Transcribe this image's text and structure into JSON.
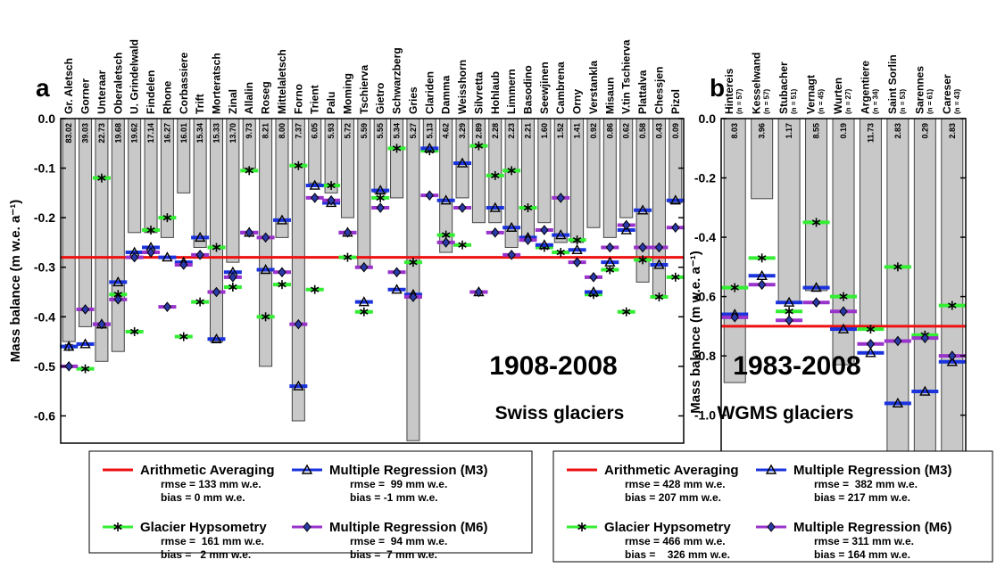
{
  "chart_data": [
    {
      "type": "bar",
      "panel_label": "a",
      "period": "1908-2008",
      "region": "Swiss glaciers",
      "y_label": "Mass balance (m w.e. a⁻¹)",
      "categories": [
        "Gr. Aletsch",
        "Gorner",
        "Unteraar",
        "Oberaletsch",
        "U. Grindelwald",
        "Findelen",
        "Rhone",
        "Corbassiere",
        "Trift",
        "Morteratsch",
        "Zinal",
        "Allalin",
        "Roseg",
        "Mittelaletsch",
        "Forno",
        "Trient",
        "Palu",
        "Moming",
        "Tschierva",
        "Gietro",
        "Schwarzberg",
        "Gries",
        "Clariden",
        "Damma",
        "Weisshorn",
        "Silvretta",
        "Hohlaub",
        "Limmern",
        "Basodino",
        "Seewjinen",
        "Cambrena",
        "Orny",
        "Verstankla",
        "Misaun",
        "V.tin Tschierva",
        "Plattalva",
        "Chessjen",
        "Pizol"
      ],
      "area_labels": [
        "83.02",
        "39.03",
        "22.73",
        "19.68",
        "19.62",
        "17.14",
        "16.27",
        "16.01",
        "15.34",
        "15.33",
        "13.70",
        "9.73",
        "8.21",
        "8.00",
        "7.37",
        "6.05",
        "5.93",
        "5.72",
        "5.59",
        "5.55",
        "5.34",
        "5.27",
        "5.13",
        "4.62",
        "3.29",
        "2.89",
        "2.28",
        "2.23",
        "2.21",
        "1.60",
        "1.52",
        "1.41",
        "0.92",
        "0.86",
        "0.62",
        "0.58",
        "0.43",
        "0.09"
      ],
      "bars": [
        -0.45,
        -0.42,
        -0.49,
        -0.47,
        -0.23,
        -0.23,
        -0.24,
        -0.15,
        -0.26,
        -0.45,
        -0.29,
        -0.1,
        -0.5,
        -0.24,
        -0.61,
        -0.13,
        -0.15,
        -0.2,
        -0.3,
        -0.15,
        -0.16,
        -0.65,
        -0.06,
        -0.27,
        -0.16,
        -0.21,
        -0.21,
        -0.26,
        -0.24,
        -0.21,
        -0.25,
        -0.25,
        -0.22,
        -0.24,
        -0.2,
        -0.33,
        -0.36,
        -0.17
      ],
      "bar_color": "#c8c8c8",
      "ylim": [
        -0.655,
        0
      ],
      "yticks": [
        {
          "value": 0,
          "label": "0.0"
        },
        -0.1,
        -0.2,
        -0.3,
        -0.4,
        -0.5,
        -0.6
      ],
      "mean_line": {
        "name": "Arithmetic Averaging",
        "color": "#ee1111",
        "value": -0.28,
        "rmse": "rmse = 133 mm w.e.",
        "bias": "bias = 0 mm w.e."
      },
      "series": [
        {
          "name": "Glacier Hypsometry",
          "color": "#33ee33",
          "marker": "asterisk",
          "rmse": "rmse =  161 mm w.e.",
          "bias": "bias =   2 mm w.e.",
          "values": [
            -0.46,
            -0.505,
            -0.12,
            -0.355,
            -0.43,
            -0.225,
            -0.2,
            -0.44,
            -0.37,
            -0.26,
            -0.34,
            -0.105,
            -0.4,
            -0.335,
            -0.095,
            -0.345,
            -0.135,
            -0.28,
            -0.39,
            -0.16,
            -0.06,
            -0.29,
            -0.065,
            -0.235,
            -0.255,
            -0.055,
            -0.115,
            -0.105,
            -0.18,
            -0.26,
            -0.27,
            -0.245,
            -0.355,
            -0.305,
            -0.39,
            -0.285,
            -0.36,
            -0.32
          ]
        },
        {
          "name": "Multiple Regression (M3)",
          "color": "#1a33dd",
          "marker": "triangle",
          "rmse": "rmse =  99 mm w.e.",
          "bias": "bias = -1 mm w.e.",
          "values": [
            -0.46,
            -0.455,
            -0.415,
            -0.33,
            -0.27,
            -0.26,
            -0.28,
            -0.29,
            -0.24,
            -0.445,
            -0.31,
            -0.23,
            -0.305,
            -0.205,
            -0.54,
            -0.135,
            -0.17,
            -0.23,
            -0.37,
            -0.145,
            -0.345,
            -0.355,
            -0.06,
            -0.165,
            -0.09,
            -0.35,
            -0.18,
            -0.22,
            -0.24,
            -0.255,
            -0.235,
            -0.265,
            -0.35,
            -0.29,
            -0.225,
            -0.185,
            -0.295,
            -0.165
          ]
        },
        {
          "name": "Multiple Regression (M6)",
          "color": "#9933cc",
          "marker": "diamond",
          "rmse": "rmse =  94 mm w.e.",
          "bias": "bias =  7 mm w.e.",
          "values": [
            -0.5,
            -0.385,
            -0.415,
            -0.365,
            -0.28,
            -0.27,
            -0.38,
            -0.295,
            -0.275,
            -0.35,
            -0.32,
            -0.23,
            -0.24,
            -0.31,
            -0.415,
            -0.16,
            -0.165,
            -0.23,
            -0.3,
            -0.18,
            -0.31,
            -0.36,
            -0.155,
            -0.25,
            -0.18,
            -0.35,
            -0.23,
            -0.275,
            -0.245,
            -0.225,
            -0.16,
            -0.29,
            -0.32,
            -0.26,
            -0.215,
            -0.26,
            -0.26,
            -0.22
          ]
        }
      ]
    },
    {
      "type": "bar",
      "panel_label": "b",
      "period": "1983-2008",
      "region": "WGMS glaciers",
      "y_label": "Mass balance (m w.e. a⁻¹)",
      "categories": [
        "Hintereis",
        "Kesselwand",
        "Stubacher",
        "Vernagt",
        "Wurten",
        "Argentiere",
        "Saint Sorlin",
        "Sarennes",
        "Careser"
      ],
      "subcategories": [
        "(n = 57)",
        "(n = 57)",
        "(n = 51)",
        "(n = 45)",
        "(n = 27)",
        "(n = 34)",
        "(n = 53)",
        "(n = 61)",
        "(n = 43)"
      ],
      "area_labels": [
        "8.03",
        "3.96",
        "1.17",
        "8.55",
        "0.19",
        "11.73",
        "2.83",
        "0.29",
        "2.83"
      ],
      "bars": [
        -0.89,
        -0.27,
        -0.62,
        -0.58,
        -0.83,
        -0.7,
        -1.16,
        -1.42,
        -1.41
      ],
      "bar_color": "#c8c8c8",
      "ylim": [
        -1.44,
        0
      ],
      "yticks": [
        {
          "value": 0,
          "label": "0.0"
        },
        -0.2,
        -0.4,
        -0.6,
        -0.8,
        {
          "value": -1,
          "label": "-1.0"
        },
        -1.2,
        -1.4
      ],
      "mean_line": {
        "name": "Arithmetic Averaging",
        "color": "#ee1111",
        "value": -0.7,
        "rmse": "rmse = 428 mm w.e.",
        "bias": "bias = 207 mm w.e."
      },
      "series": [
        {
          "name": "Glacier Hypsometry",
          "color": "#33ee33",
          "marker": "asterisk",
          "rmse": "rmse = 466 mm w.e.",
          "bias": "bias =    326 mm w.e.",
          "values": [
            -0.57,
            -0.47,
            -0.65,
            -0.35,
            -0.6,
            -0.71,
            -0.5,
            -0.73,
            -0.63
          ]
        },
        {
          "name": "Multiple Regression (M3)",
          "color": "#1a33dd",
          "marker": "triangle",
          "rmse": "rmse =  382 mm w.e.",
          "bias": "bias = 217 mm w.e.",
          "values": [
            -0.66,
            -0.53,
            -0.62,
            -0.57,
            -0.71,
            -0.79,
            -0.96,
            -0.92,
            -0.82
          ]
        },
        {
          "name": "Multiple Regression (M6)",
          "color": "#9933cc",
          "marker": "diamond",
          "rmse": "rmse = 311 mm w.e.",
          "bias": "bias = 164 mm w.e.",
          "values": [
            -0.67,
            -0.56,
            -0.68,
            -0.62,
            -0.65,
            -0.76,
            -0.75,
            -0.74,
            -0.8
          ]
        }
      ]
    }
  ]
}
